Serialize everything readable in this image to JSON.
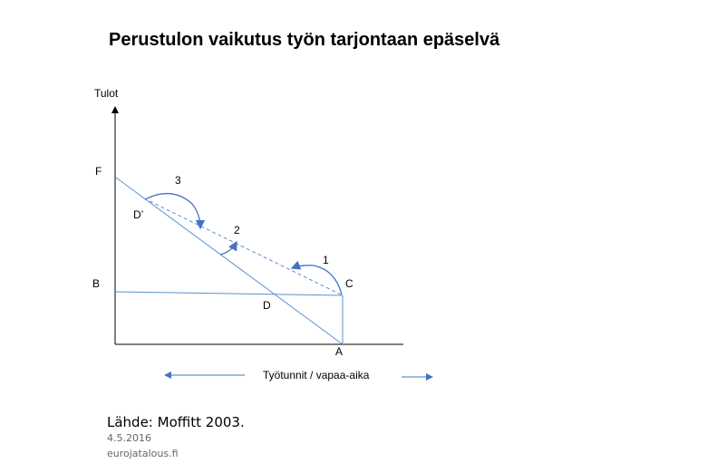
{
  "header": {
    "title": "Perustulon vaikutus työn tarjontaan epäselvä"
  },
  "diagram": {
    "y_axis_label": "Tulot",
    "x_axis_label": "Työtunnit / vapaa-aika",
    "points": {
      "F": "F",
      "B": "B",
      "D_prime": "D’",
      "D": "D",
      "C": "C",
      "A": "A"
    },
    "steps": [
      "1",
      "2",
      "3"
    ]
  },
  "footer": {
    "source": "Lähde: Moffitt 2003.",
    "date": "4.5.2016",
    "site": "eurojatalous.fi"
  }
}
